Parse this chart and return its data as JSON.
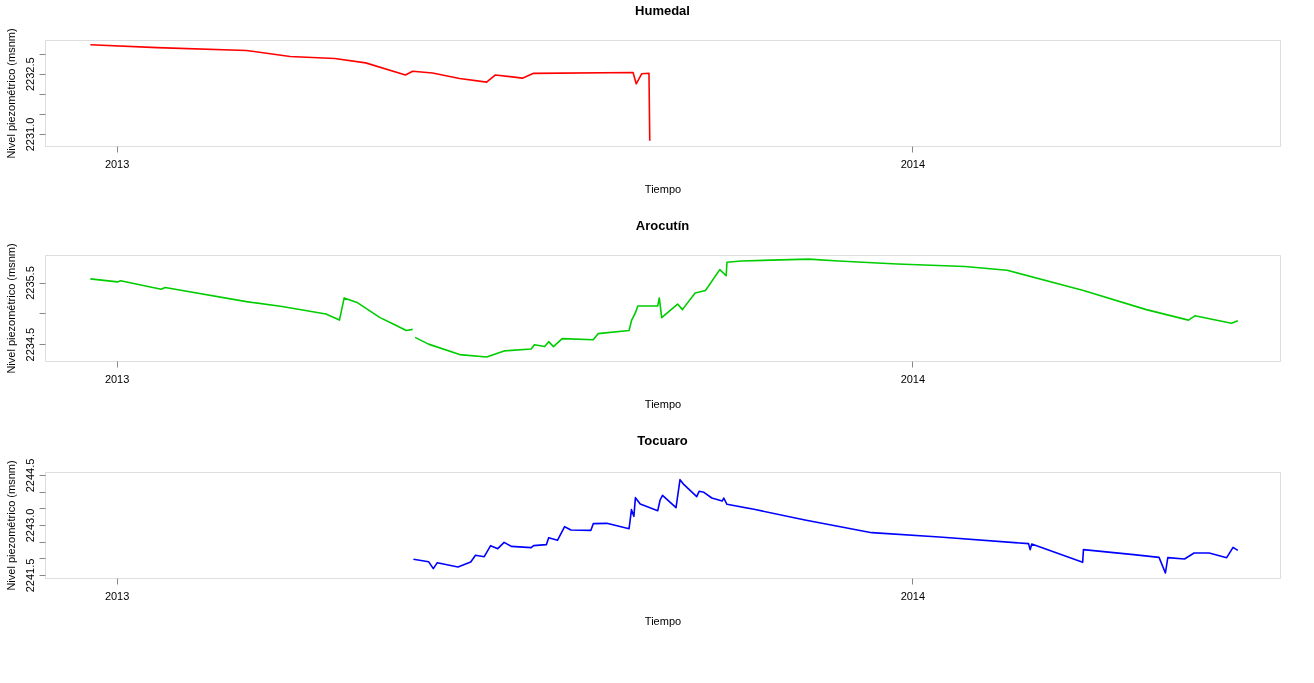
{
  "chart_data": [
    {
      "type": "line",
      "title": "Humedal",
      "xlabel": "Tiempo",
      "ylabel": "Nivel piezométrico (msnm)",
      "legend": false,
      "grid": false,
      "xlim": [
        2012.91,
        2014.462
      ],
      "xticks": [
        2013,
        2014
      ],
      "ylim": [
        2230.7,
        2233.34
      ],
      "yticks": [
        {
          "value": 2231.0,
          "label": "2231.0"
        },
        {
          "value": 2231.5,
          "label": null
        },
        {
          "value": 2232.0,
          "label": null
        },
        {
          "value": 2232.5,
          "label": "2232.5"
        },
        {
          "value": 2233.0,
          "label": null
        }
      ],
      "series": [
        {
          "color": "#ff0000",
          "x": [
            2012.967,
            2013.051,
            2013.163,
            2013.218,
            2013.274,
            2013.313,
            2013.363,
            2013.372,
            2013.397,
            2013.431,
            2013.465,
            2013.476,
            2013.51,
            2013.524,
            2013.649,
            2013.653,
            2013.66,
            2013.669,
            2013.67
          ],
          "values": [
            2233.22,
            2233.15,
            2233.08,
            2232.93,
            2232.88,
            2232.77,
            2232.47,
            2232.56,
            2232.52,
            2232.38,
            2232.29,
            2232.47,
            2232.39,
            2232.51,
            2232.53,
            2232.25,
            2232.5,
            2232.51,
            2230.83
          ]
        }
      ]
    },
    {
      "type": "line",
      "title": "Arocutín",
      "xlabel": "Tiempo",
      "ylabel": "Nivel piezométrico (msnm)",
      "legend": false,
      "grid": false,
      "xlim": [
        2012.91,
        2014.462
      ],
      "xticks": [
        2013,
        2014
      ],
      "ylim": [
        2234.226,
        2235.947
      ],
      "yticks": [
        {
          "value": 2234.5,
          "label": "2234.5"
        },
        {
          "value": 2235.0,
          "label": null
        },
        {
          "value": 2235.5,
          "label": "2235.5"
        }
      ],
      "series": [
        {
          "color": "#00cd00",
          "x": [
            2012.967,
            2013.001,
            2013.005,
            2013.056,
            2013.061,
            2013.163,
            2013.208,
            2013.263,
            2013.28,
            2013.286,
            2013.303,
            2013.331,
            2013.347,
            2013.364,
            2013.372,
            2013.374,
            2013.375,
            2013.392,
            2013.431,
            2013.465,
            2013.487,
            2013.521,
            2013.525,
            2013.538,
            2013.543,
            2013.549,
            2013.56,
            2013.599,
            2013.605,
            2013.644,
            2013.647,
            2013.652,
            2013.655,
            2013.68,
            2013.682,
            2013.685,
            2013.705,
            2013.711,
            2013.727,
            2013.74,
            2013.758,
            2013.766,
            2013.767,
            2013.785,
            2013.87,
            2013.907,
            2013.981,
            2014.066,
            2014.119,
            2014.215,
            2014.294,
            2014.347,
            2014.355,
            2014.401,
            2014.409
          ],
          "values": [
            2235.56,
            2235.51,
            2235.53,
            2235.39,
            2235.42,
            2235.19,
            2235.11,
            2234.99,
            2234.89,
            2235.25,
            2235.17,
            2234.93,
            2234.83,
            2234.72,
            2234.74,
            null,
            2234.61,
            2234.5,
            2234.33,
            2234.29,
            2234.39,
            2234.42,
            2234.49,
            2234.46,
            2234.54,
            2234.46,
            2234.59,
            2234.57,
            2234.67,
            2234.72,
            2234.88,
            2235.01,
            2235.12,
            2235.12,
            2235.25,
            2234.93,
            2235.15,
            2235.06,
            2235.33,
            2235.37,
            2235.71,
            2235.61,
            2235.83,
            2235.85,
            2235.88,
            2235.85,
            2235.8,
            2235.76,
            2235.7,
            2235.37,
            2235.06,
            2234.89,
            2234.96,
            2234.84,
            2234.88
          ]
        }
      ]
    },
    {
      "type": "line",
      "title": "Tocuaro",
      "xlabel": "Tiempo",
      "ylabel": "Nivel piezométrico (msnm)",
      "legend": false,
      "grid": false,
      "xlim": [
        2012.91,
        2014.462
      ],
      "xticks": [
        2013,
        2014
      ],
      "ylim": [
        2241.41,
        2244.59
      ],
      "yticks": [
        {
          "value": 2241.5,
          "label": "2241.5"
        },
        {
          "value": 2242.0,
          "label": null
        },
        {
          "value": 2242.5,
          "label": null
        },
        {
          "value": 2243.0,
          "label": "2243.0"
        },
        {
          "value": 2243.5,
          "label": null
        },
        {
          "value": 2244.0,
          "label": null
        },
        {
          "value": 2244.5,
          "label": "2244.5"
        }
      ],
      "series": [
        {
          "color": "#0000ff",
          "x": [
            2013.373,
            2013.392,
            2013.398,
            2013.403,
            2013.429,
            2013.445,
            2013.451,
            2013.462,
            2013.47,
            2013.479,
            2013.487,
            2013.496,
            2013.521,
            2013.524,
            2013.54,
            2013.543,
            2013.554,
            2013.563,
            2013.571,
            2013.596,
            2013.599,
            2013.616,
            2013.644,
            2013.647,
            2013.65,
            2013.652,
            2013.658,
            2013.68,
            2013.683,
            2013.686,
            2013.703,
            2013.708,
            2013.713,
            2013.729,
            2013.732,
            2013.738,
            2013.748,
            2013.761,
            2013.763,
            2013.767,
            2013.801,
            2013.865,
            2013.949,
            2014.034,
            2014.146,
            2014.148,
            2014.15,
            2014.214,
            2014.215,
            2014.278,
            2014.31,
            2014.318,
            2014.321,
            2014.342,
            2014.354,
            2014.373,
            2014.395,
            2014.403,
            2014.409
          ],
          "values": [
            2241.97,
            2241.9,
            2241.69,
            2241.87,
            2241.74,
            2241.89,
            2242.09,
            2242.05,
            2242.38,
            2242.29,
            2242.48,
            2242.36,
            2242.32,
            2242.38,
            2242.41,
            2242.62,
            2242.54,
            2242.95,
            2242.85,
            2242.84,
            2243.04,
            2243.05,
            2242.89,
            2243.46,
            2243.26,
            2243.82,
            2243.63,
            2243.43,
            2243.75,
            2243.89,
            2243.52,
            2244.36,
            2244.21,
            2243.85,
            2244.01,
            2243.98,
            2243.81,
            2243.72,
            2243.81,
            2243.62,
            2243.47,
            2243.15,
            2242.77,
            2242.64,
            2242.44,
            2242.26,
            2242.43,
            2241.88,
            2242.26,
            2242.11,
            2242.03,
            2241.56,
            2242.02,
            2241.98,
            2242.16,
            2242.16,
            2242.02,
            2242.33,
            2242.24
          ]
        }
      ]
    }
  ]
}
